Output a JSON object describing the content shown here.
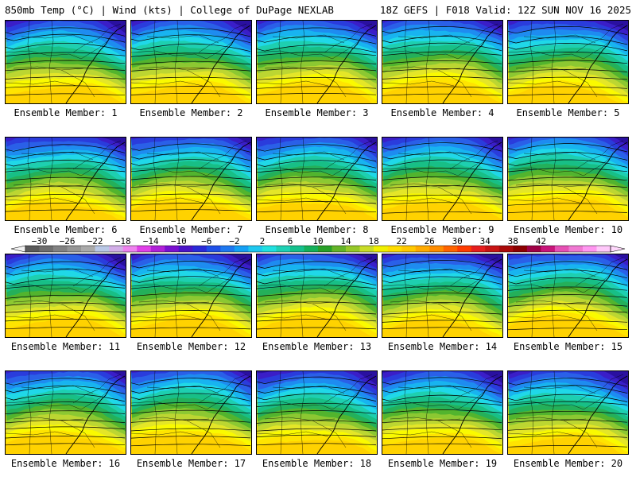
{
  "header": {
    "left_title": "850mb Temp (°C) | Wind (kts) | College of DuPage NEXLAB",
    "right_title": "18Z GEFS | F018 Valid: 12Z SUN NOV 16 2025"
  },
  "panels": [
    {
      "label": "Ensemble Member: 1"
    },
    {
      "label": "Ensemble Member: 2"
    },
    {
      "label": "Ensemble Member: 3"
    },
    {
      "label": "Ensemble Member: 4"
    },
    {
      "label": "Ensemble Member: 5"
    },
    {
      "label": "Ensemble Member: 6"
    },
    {
      "label": "Ensemble Member: 7"
    },
    {
      "label": "Ensemble Member: 8"
    },
    {
      "label": "Ensemble Member: 9"
    },
    {
      "label": "Ensemble Member: 10"
    },
    {
      "label": "Ensemble Member: 11"
    },
    {
      "label": "Ensemble Member: 12"
    },
    {
      "label": "Ensemble Member: 13"
    },
    {
      "label": "Ensemble Member: 14"
    },
    {
      "label": "Ensemble Member: 15"
    },
    {
      "label": "Ensemble Member: 16"
    },
    {
      "label": "Ensemble Member: 17"
    },
    {
      "label": "Ensemble Member: 18"
    },
    {
      "label": "Ensemble Member: 19"
    },
    {
      "label": "Ensemble Member: 20"
    }
  ],
  "colorbar": {
    "tick_labels": [
      "−30",
      "−26",
      "−22",
      "−18",
      "−14",
      "−10",
      "−6",
      "−2",
      "2",
      "6",
      "10",
      "14",
      "18",
      "22",
      "26",
      "30",
      "34",
      "38",
      "42"
    ],
    "colors": [
      "#5a5a5a",
      "#6e6e6e",
      "#828282",
      "#969696",
      "#aaaaaa",
      "#b9c8e6",
      "#d2aee8",
      "#ee82ee",
      "#e040e8",
      "#b020d8",
      "#7a10d0",
      "#4a14c8",
      "#2a2ad8",
      "#1e50e8",
      "#1e78f0",
      "#14a0f5",
      "#1ec8f0",
      "#20e0e0",
      "#1ed0b4",
      "#14c08c",
      "#14b05a",
      "#28a028",
      "#64b428",
      "#96c828",
      "#c8dc28",
      "#f0f000",
      "#ffdc00",
      "#ffc800",
      "#ffaa00",
      "#ff8c00",
      "#ff6400",
      "#ff3c00",
      "#e61e1e",
      "#c81414",
      "#aa0a0a",
      "#8c0000",
      "#a00046",
      "#c8147a",
      "#e650b4",
      "#f078d2",
      "#ff96f0",
      "#ffc8fa"
    ],
    "temperature_band_colors": [
      "#2a10a0",
      "#3a1ec8",
      "#2a3cdc",
      "#2a60e8",
      "#1e8cf0",
      "#18b4f0",
      "#20d8e8",
      "#1ecfb0",
      "#18bf86",
      "#24b05a",
      "#52b42e",
      "#8cc832",
      "#bcd632",
      "#e4e628",
      "#fafa00",
      "#ffe400",
      "#ffd200"
    ]
  }
}
